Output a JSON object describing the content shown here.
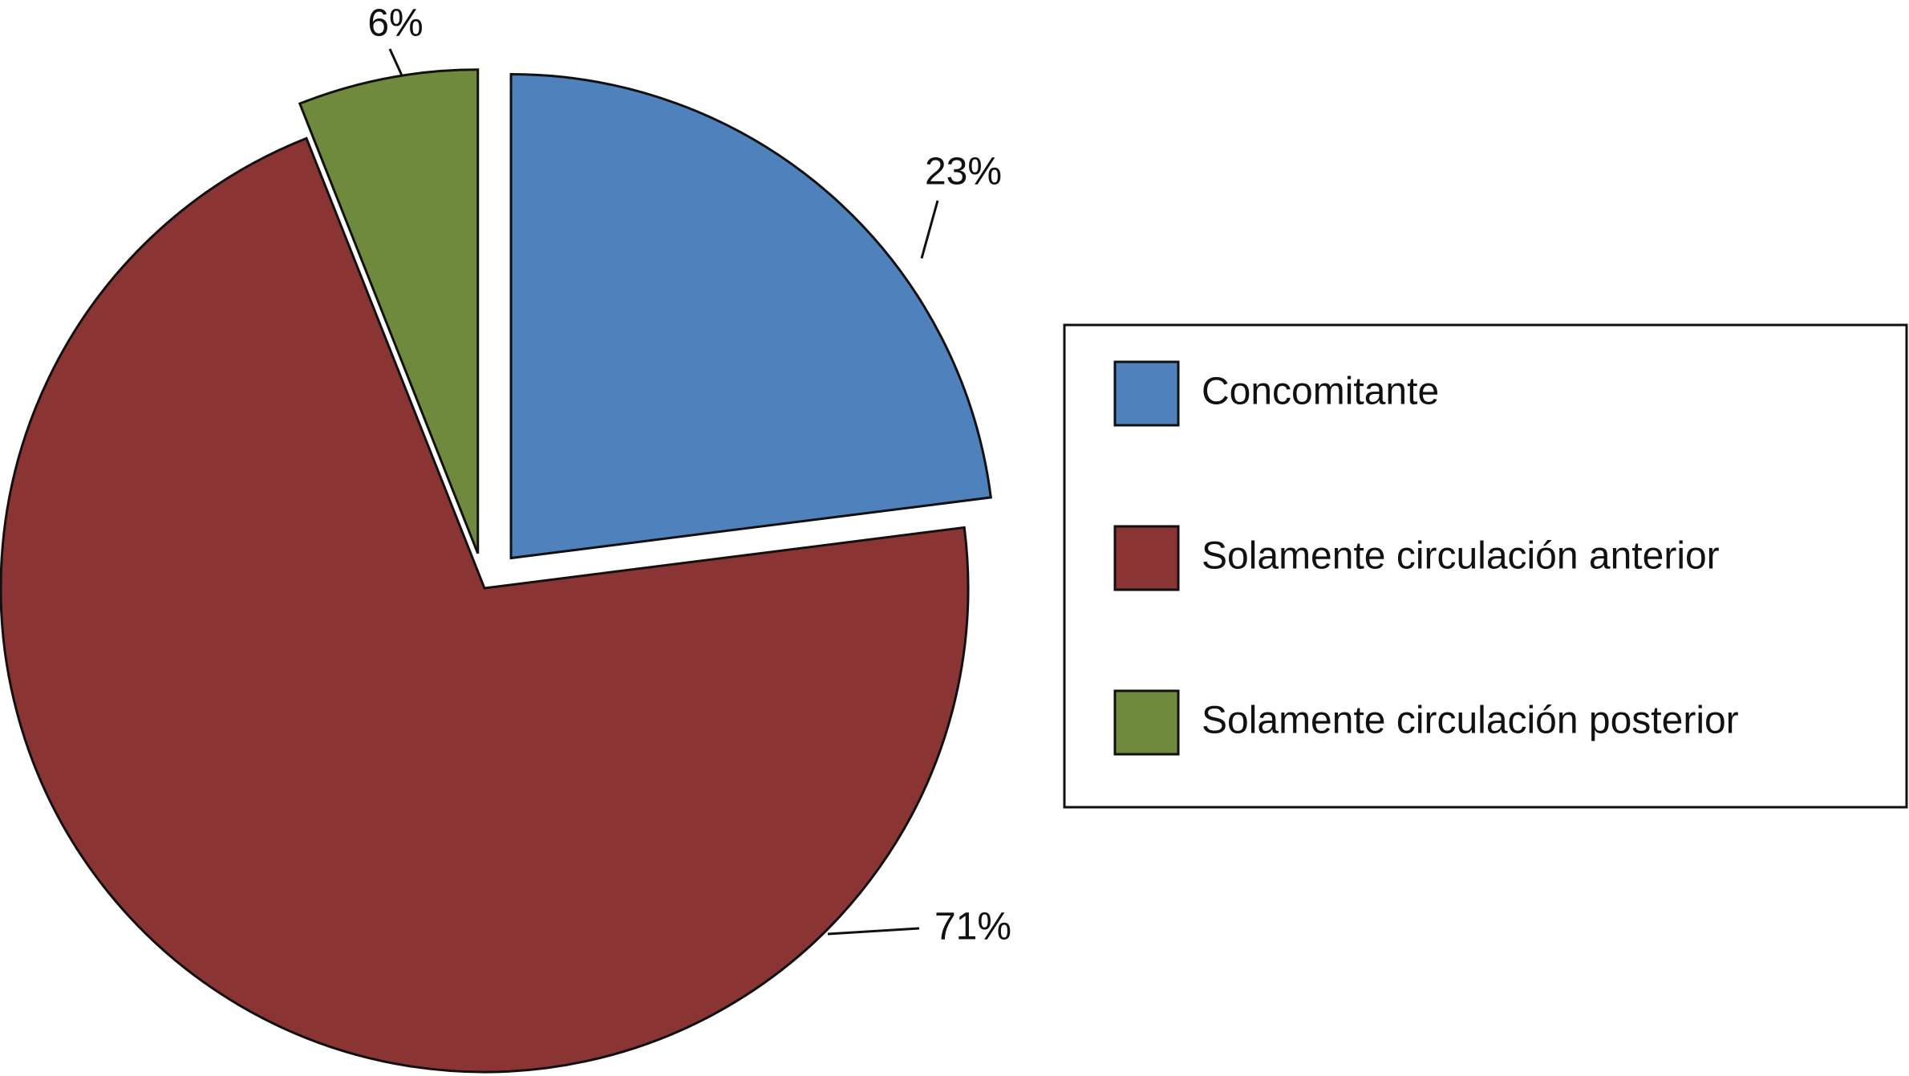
{
  "chart_data": {
    "type": "pie",
    "categories": [
      "Concomitante",
      "Solamente circulación anterior",
      "Solamente circulación posterior"
    ],
    "values": [
      23,
      71,
      6
    ],
    "value_labels": [
      "23%",
      "71%",
      "6%"
    ],
    "colors": [
      "#4f81bd",
      "#8b3434",
      "#6f8a3c"
    ],
    "legend": "right"
  }
}
